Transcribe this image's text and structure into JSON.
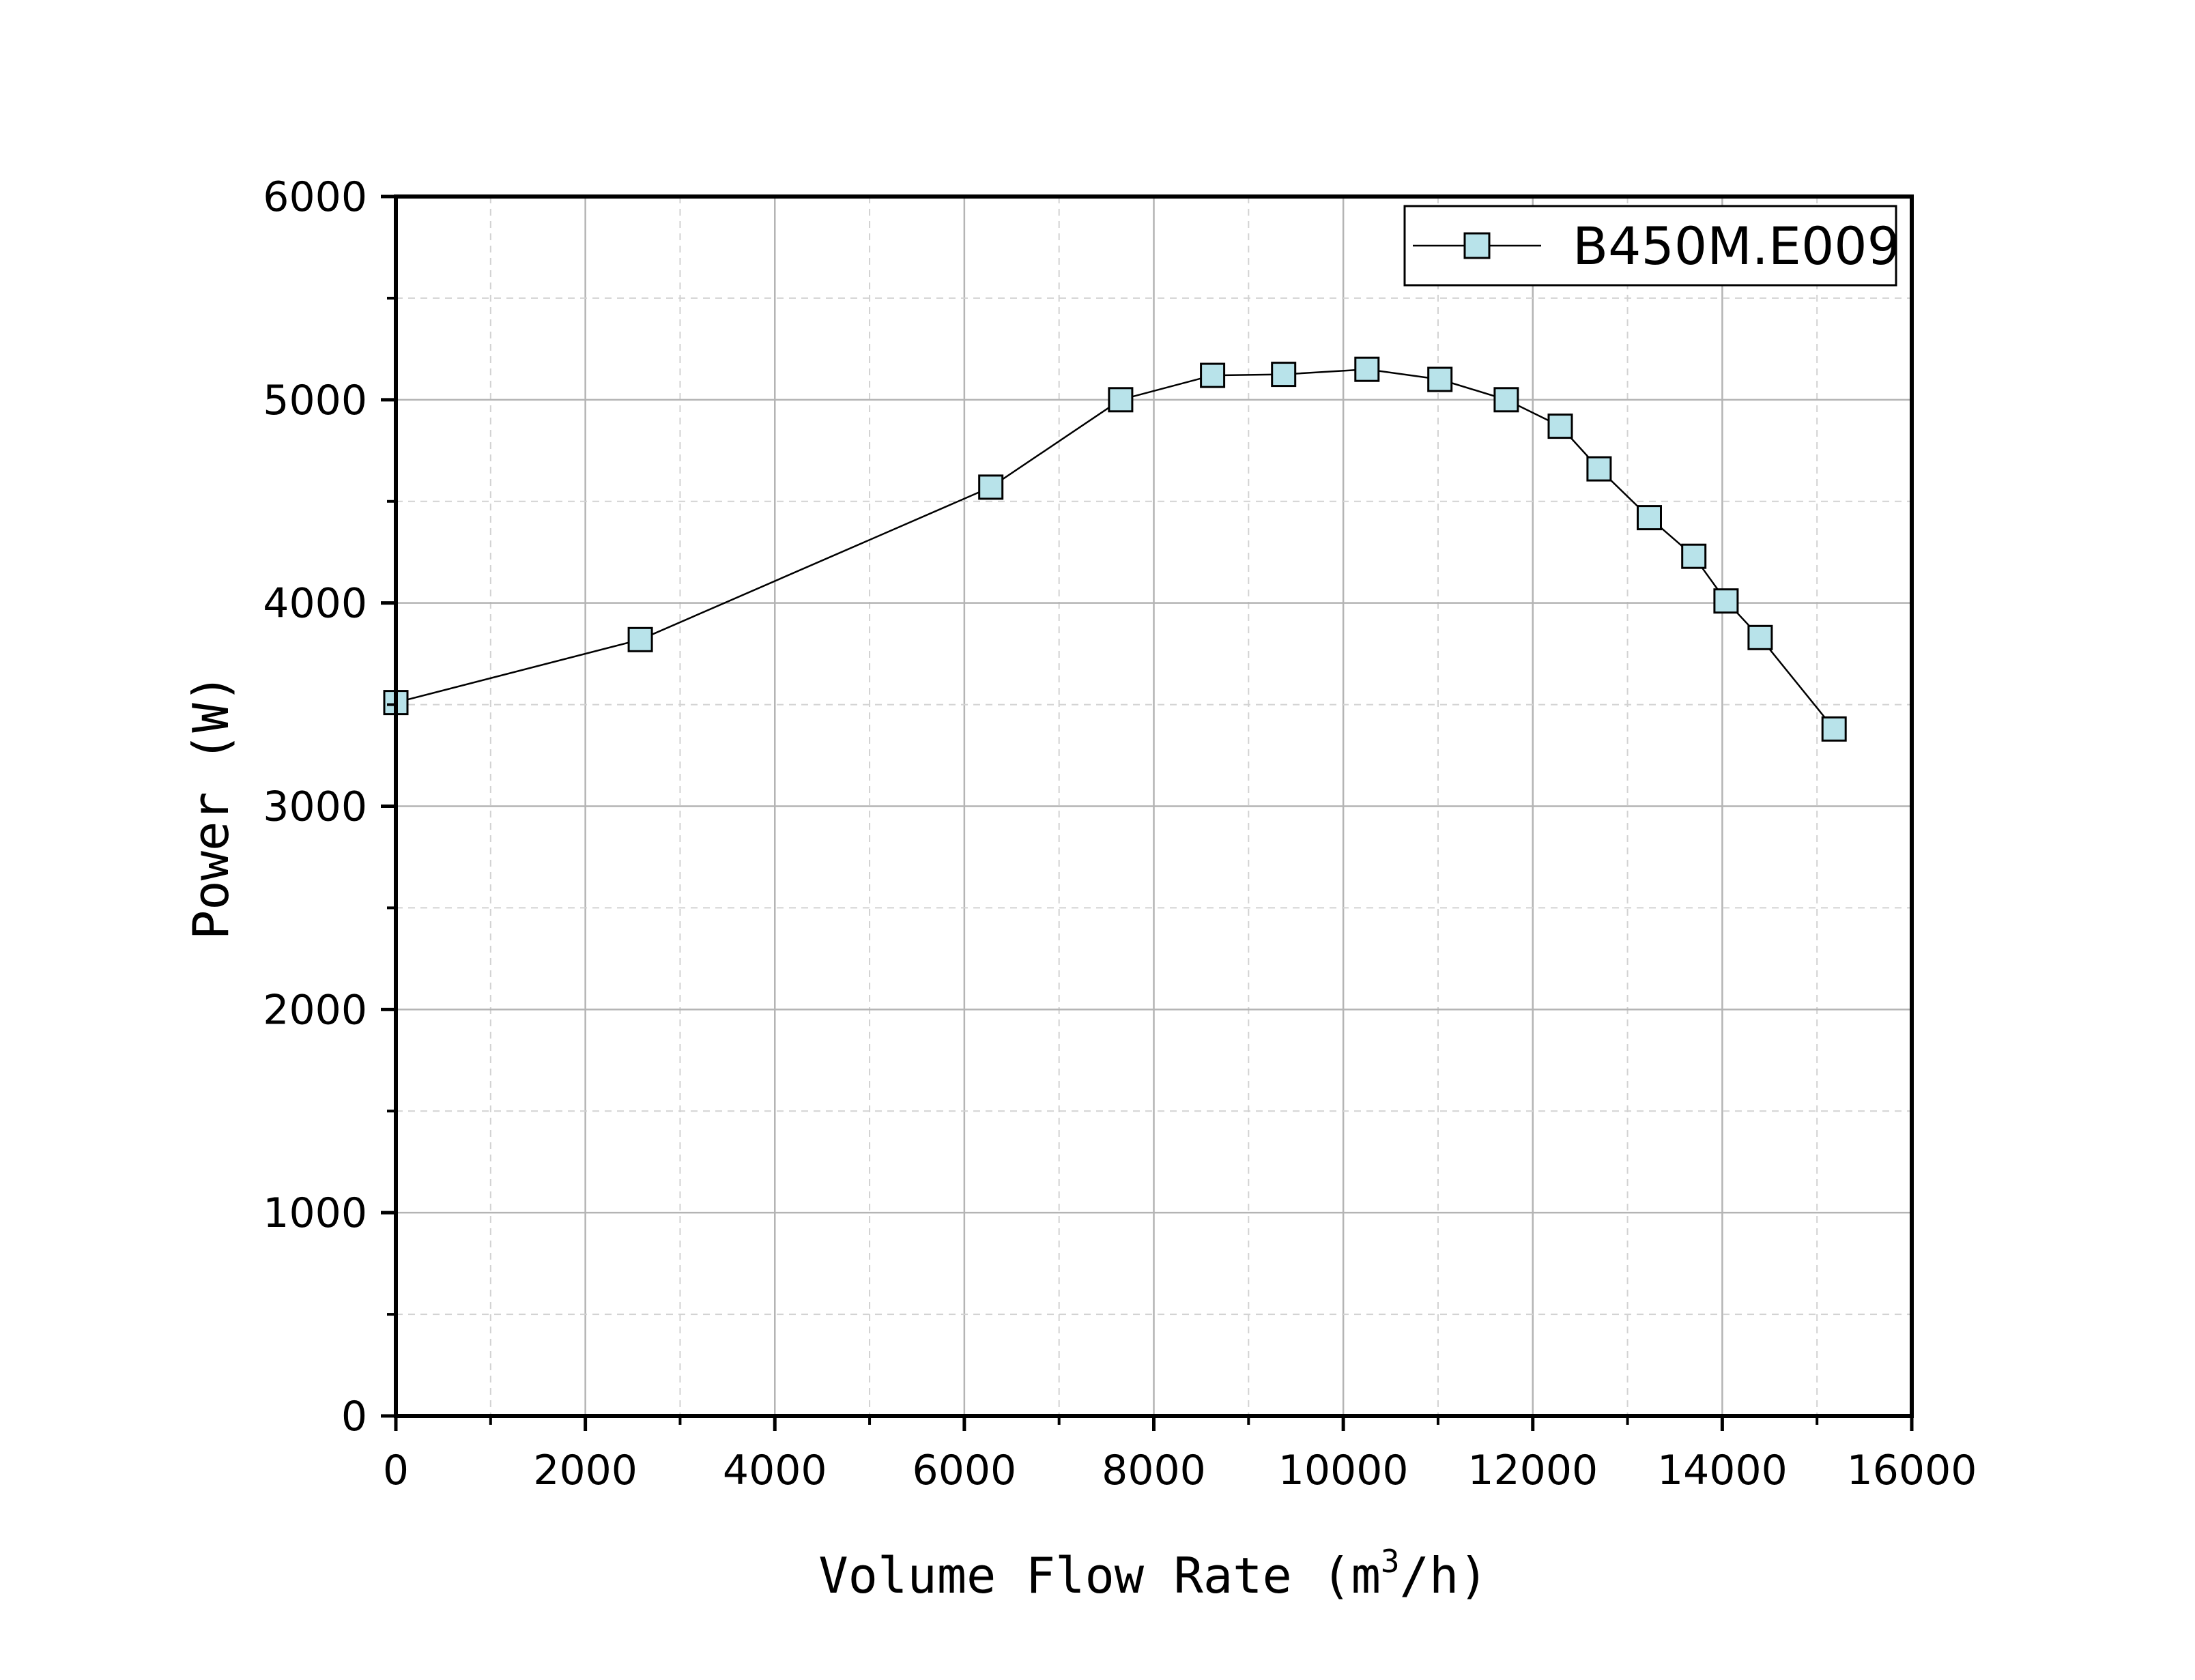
{
  "chart_data": {
    "type": "line",
    "title": "",
    "xlabel_main": "Volume Flow Rate (m",
    "xlabel_sup": "3",
    "xlabel_tail": "/h)",
    "ylabel": "Power (W)",
    "xlim": [
      0,
      16000
    ],
    "ylim": [
      0,
      6000
    ],
    "x_ticks": [
      0,
      2000,
      4000,
      6000,
      8000,
      10000,
      12000,
      14000,
      16000
    ],
    "y_ticks": [
      0,
      1000,
      2000,
      3000,
      4000,
      5000,
      6000
    ],
    "x_tick_labels": [
      "0",
      "2000",
      "4000",
      "6000",
      "8000",
      "10000",
      "12000",
      "14000",
      "16000"
    ],
    "y_tick_labels": [
      "0",
      "1000",
      "2000",
      "3000",
      "4000",
      "5000",
      "6000"
    ],
    "grid": true,
    "legend_position": "top-right",
    "series": [
      {
        "name": "B450M.E009",
        "marker": "square",
        "marker_color": "#b8e3ea",
        "line_color": "#000000",
        "x": [
          0,
          2580,
          6280,
          7650,
          8620,
          9370,
          10250,
          11020,
          11720,
          12290,
          12700,
          13230,
          13700,
          14040,
          14400,
          15180
        ],
        "y": [
          3510,
          3820,
          4570,
          5000,
          5120,
          5125,
          5150,
          5100,
          5000,
          4870,
          4660,
          4420,
          4230,
          4010,
          3830,
          3380
        ]
      }
    ]
  }
}
